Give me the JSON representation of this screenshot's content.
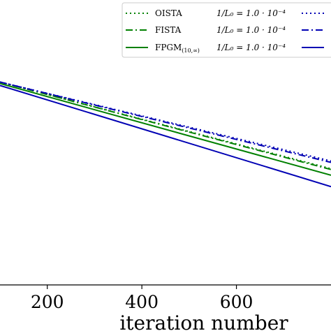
{
  "chart_data": {
    "type": "line",
    "xlabel": "iteration number",
    "ylabel": "",
    "title": "",
    "xlim": [
      100,
      800
    ],
    "ylim": [
      0,
      1
    ],
    "x_ticks": [
      200,
      400,
      600
    ],
    "x_tick_labels": [
      "200",
      "400",
      "600"
    ],
    "grid": false,
    "legend_placement": "top-right",
    "series": [
      {
        "name": "OISTA",
        "step": "1/L₀ = 1.0 · 10⁻⁴",
        "color": "#008000",
        "style": "dotted",
        "x": [
          100,
          800
        ],
        "y": [
          0.712,
          0.408
        ]
      },
      {
        "name": "FISTA",
        "step": "1/L₀ = 1.0 · 10⁻⁴",
        "color": "#008000",
        "style": "dashdot",
        "x": [
          100,
          800
        ],
        "y": [
          0.712,
          0.405
        ]
      },
      {
        "name": "FPGM",
        "name_sub": "(10,∞)",
        "step": "1/L₀ = 1.0 · 10⁻⁴",
        "color": "#008000",
        "style": "solid",
        "x": [
          100,
          800
        ],
        "y": [
          0.707,
          0.385
        ]
      },
      {
        "name": "",
        "step": "",
        "color": "#0000b4",
        "style": "dotted",
        "x": [
          100,
          800
        ],
        "y": [
          0.712,
          0.435
        ]
      },
      {
        "name": "",
        "step": "",
        "color": "#0000b4",
        "style": "dashdot",
        "x": [
          100,
          800
        ],
        "y": [
          0.712,
          0.43
        ]
      },
      {
        "name": "",
        "step": "",
        "color": "#0000b4",
        "style": "solid",
        "x": [
          100,
          800
        ],
        "y": [
          0.7,
          0.345
        ]
      }
    ]
  }
}
